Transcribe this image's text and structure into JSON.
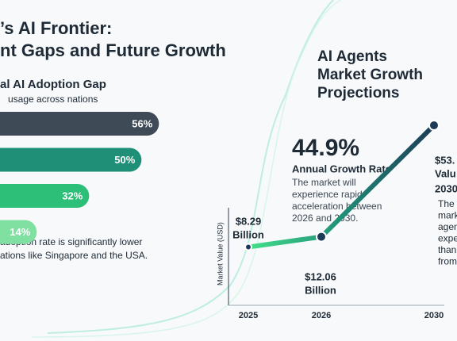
{
  "header": {
    "title_lines": [
      "’s AI Frontier:",
      "nt Gaps and Future Growth"
    ]
  },
  "chart_data": [
    {
      "type": "bar",
      "orientation": "horizontal",
      "title": "al AI Adoption Gap",
      "subtitle": "usage across nations",
      "values": [
        56,
        50,
        32,
        14
      ],
      "value_labels": [
        "56%",
        "50%",
        "32%",
        "14%"
      ],
      "colors": [
        "#3e4a56",
        "#1f8f78",
        "#2dbf78",
        "#7fe0a2"
      ],
      "xlim": [
        0,
        60
      ],
      "annotation_lines": [
        "adoption rate is significantly lower",
        "ations like Singapore and the USA."
      ]
    },
    {
      "type": "line",
      "title_lines": [
        "AI Agents",
        "Market Growth",
        "Projections"
      ],
      "y_label": "Market Value (USD)",
      "categories": [
        "2025",
        "2026",
        "2030"
      ],
      "values": [
        8.29,
        12.06,
        53
      ],
      "value_labels": [
        "$8.29",
        "$12.06",
        "$53."
      ],
      "value_units": [
        "Billion",
        "Billion",
        "Valu"
      ],
      "color": "#1d3b57",
      "ylim": [
        0,
        60
      ],
      "growth": {
        "rate": "44.9%",
        "label": "Annual Growth Rate",
        "lines": [
          "The market will",
          "experience rapid",
          "acceleration between",
          "2026 and 2030."
        ]
      },
      "side_lines": [
        "2030",
        "The g",
        "mark",
        "agen",
        "expe",
        "than",
        "from"
      ]
    }
  ]
}
